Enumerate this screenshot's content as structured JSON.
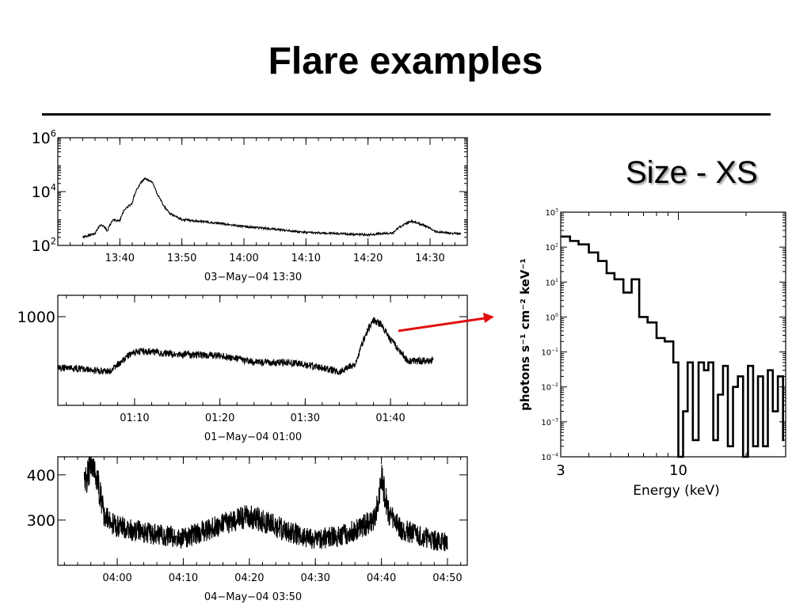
{
  "title": "Flare examples",
  "size_label": "Size - XS",
  "colors": {
    "arrow": "#e01010",
    "ink": "#000000"
  },
  "chart_data": [
    {
      "type": "line",
      "id": "lc1",
      "xticks": [
        "13:40",
        "13:50",
        "14:00",
        "14:10",
        "14:20",
        "14:30"
      ],
      "xlabel": "03−May−04 13:30",
      "yscale": "log",
      "yticks": [
        {
          "v": 100,
          "base": "10",
          "exp": "2"
        },
        {
          "v": 10000,
          "base": "10",
          "exp": "4"
        },
        {
          "v": 1000000,
          "base": "10",
          "exp": "6"
        }
      ],
      "ylim": [
        100,
        1000000
      ],
      "series": [
        {
          "x": [
            "13:34",
            "13:36",
            "13:37",
            "13:38",
            "13:39",
            "13:40",
            "13:41",
            "13:42",
            "13:43",
            "13:44",
            "13:45",
            "13:46",
            "13:47",
            "13:48",
            "13:50",
            "13:55",
            "14:00",
            "14:10",
            "14:20",
            "14:24",
            "14:27",
            "14:29",
            "14:31",
            "14:35"
          ],
          "y": [
            200,
            270,
            600,
            350,
            900,
            800,
            2500,
            3500,
            15000,
            30000,
            25000,
            8000,
            3000,
            1500,
            900,
            700,
            500,
            300,
            250,
            290,
            800,
            550,
            320,
            260
          ]
        }
      ]
    },
    {
      "type": "line",
      "id": "lc2",
      "xticks": [
        "01:10",
        "01:20",
        "01:30",
        "01:40"
      ],
      "xlabel": "01−May−04 01:00",
      "yticks": [
        {
          "v": 1000,
          "label": "1000"
        }
      ],
      "series": [
        {
          "x": [
            "01:01",
            "01:04",
            "01:07",
            "01:10",
            "01:12",
            "01:14",
            "01:20",
            "01:24",
            "01:28",
            "01:32",
            "01:34",
            "01:36",
            "01:37",
            "01:38",
            "01:39",
            "01:40",
            "01:42",
            "01:45"
          ],
          "y": [
            430,
            420,
            400,
            560,
            560,
            540,
            525,
            470,
            470,
            430,
            400,
            460,
            720,
            940,
            870,
            680,
            480,
            480
          ]
        }
      ]
    },
    {
      "type": "line",
      "id": "lc3",
      "xticks": [
        "04:00",
        "04:10",
        "04:20",
        "04:30",
        "04:40",
        "04:50"
      ],
      "xlabel": "04−May−04 03:50",
      "yticks": [
        {
          "v": 300,
          "label": "300"
        },
        {
          "v": 400,
          "label": "400"
        }
      ],
      "ylim": [
        200,
        440
      ],
      "series": [
        {
          "x": [
            "03:55",
            "03:56",
            "03:57",
            "03:58",
            "04:00",
            "04:05",
            "04:10",
            "04:15",
            "04:20",
            "04:25",
            "04:30",
            "04:35",
            "04:39",
            "04:40",
            "04:41",
            "04:43",
            "04:45",
            "04:48",
            "04:50"
          ],
          "y": [
            380,
            420,
            390,
            310,
            285,
            270,
            260,
            285,
            310,
            280,
            255,
            270,
            300,
            395,
            320,
            280,
            270,
            255,
            250
          ]
        }
      ]
    },
    {
      "type": "line",
      "id": "spec",
      "xscale": "log",
      "yscale": "log",
      "xticks": [
        "3",
        "10"
      ],
      "xlabel": "Energy (keV)",
      "ylabel": "photons s⁻¹ cm⁻² keV⁻¹",
      "yticks": [
        {
          "v": 0.0001,
          "base": "10",
          "exp": "−4"
        },
        {
          "v": 0.001,
          "base": "10",
          "exp": "−3"
        },
        {
          "v": 0.01,
          "base": "10",
          "exp": "−2"
        },
        {
          "v": 0.1,
          "base": "10",
          "exp": "−1"
        },
        {
          "v": 1,
          "base": "10",
          "exp": "0"
        },
        {
          "v": 10,
          "base": "10",
          "exp": "1"
        },
        {
          "v": 100,
          "base": "10",
          "exp": "2"
        },
        {
          "v": 1000,
          "base": "10",
          "exp": "3"
        }
      ],
      "ylim": [
        0.0001,
        1000
      ],
      "xlim": [
        3,
        30
      ],
      "series": [
        {
          "x": [
            3,
            3.3,
            3.6,
            4.0,
            4.4,
            4.8,
            5.2,
            5.7,
            6.2,
            6.7,
            7.3,
            8.0,
            8.7,
            9.5,
            10.0,
            10.5,
            11.0,
            11.6,
            12.3,
            13.0,
            13.6,
            14.3,
            15.0,
            15.8,
            16.6,
            17.5,
            18.4,
            19.4,
            20.4,
            21.5,
            22.6,
            23.8,
            25.0,
            26.3,
            27.7,
            29.2
          ],
          "y": [
            200,
            150,
            120,
            70,
            40,
            18,
            12,
            5,
            12,
            1,
            0.7,
            0.25,
            0.2,
            0.05,
            0.0001,
            0.002,
            0.05,
            0.0003,
            0.05,
            0.03,
            0.05,
            0.0003,
            0.006,
            0.04,
            0.0002,
            0.01,
            0.02,
            0.0001,
            0.04,
            0.0002,
            0.02,
            0.0002,
            0.03,
            0.002,
            0.02,
            0.0003
          ]
        }
      ]
    }
  ]
}
